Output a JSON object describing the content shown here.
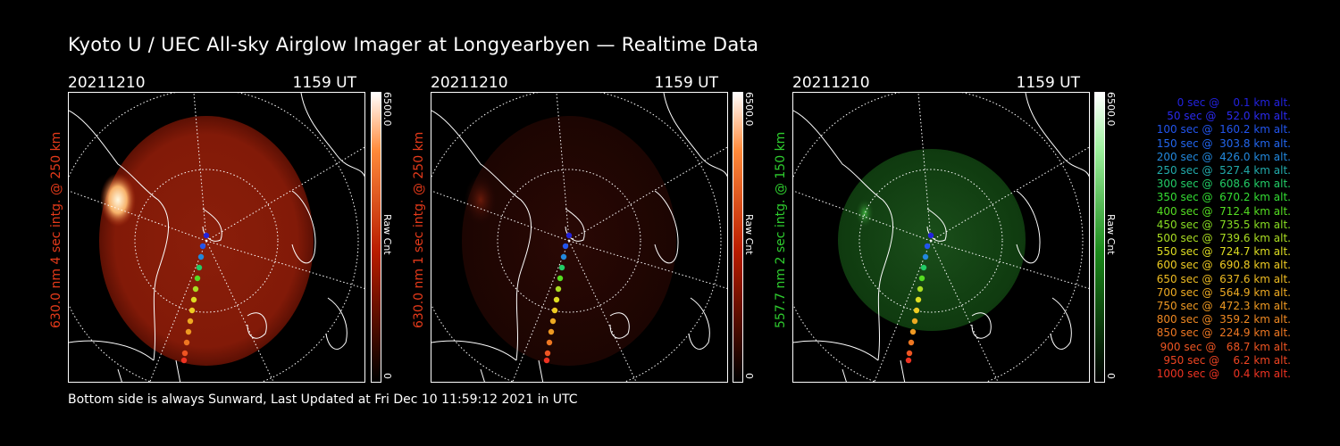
{
  "title": "Kyoto U / UEC All-sky Airglow Imager at Longyearbyen — Realtime Data",
  "footer": "Bottom side is always Sunward, Last Updated at Fri Dec 10 11:59:12 2021 in UTC",
  "panels": [
    {
      "date": "20211210",
      "time": "1159 UT",
      "ylabel": "630.0 nm  4 sec intg. @ 250 km",
      "label_color": "#e53a1a",
      "cbar_max": "6500.0",
      "cbar_min": "0",
      "cbar_unit": "Raw Cnt",
      "cbar_color": "#cc2200"
    },
    {
      "date": "20211210",
      "time": "1159 UT",
      "ylabel": "630.0 nm  1 sec intg. @ 250 km",
      "label_color": "#e53a1a",
      "cbar_max": "6500.0",
      "cbar_min": "0",
      "cbar_unit": "Raw Cnt",
      "cbar_color": "#cc2200"
    },
    {
      "date": "20211210",
      "time": "1159 UT",
      "ylabel": "557.7 nm  2 sec intg. @ 150 km",
      "label_color": "#2ecc2e",
      "cbar_max": "6500.0",
      "cbar_min": "0",
      "cbar_unit": "Raw Cnt",
      "cbar_color": "#1aa31a"
    }
  ],
  "legend": [
    {
      "text": "   0 sec @    0.1 km alt.",
      "color": "#2222dd"
    },
    {
      "text": "  50 sec @   52.0 km alt.",
      "color": "#2a2aee"
    },
    {
      "text": " 100 sec @  160.2 km alt.",
      "color": "#2255ee"
    },
    {
      "text": " 150 sec @  303.8 km alt.",
      "color": "#2266ee"
    },
    {
      "text": " 200 sec @  426.0 km alt.",
      "color": "#2288dd"
    },
    {
      "text": " 250 sec @  527.4 km alt.",
      "color": "#22aaaa"
    },
    {
      "text": " 300 sec @  608.6 km alt.",
      "color": "#22cc66"
    },
    {
      "text": " 350 sec @  670.2 km alt.",
      "color": "#33dd33"
    },
    {
      "text": " 400 sec @  712.4 km alt.",
      "color": "#55dd22"
    },
    {
      "text": " 450 sec @  735.5 km alt.",
      "color": "#88dd22"
    },
    {
      "text": " 500 sec @  739.6 km alt.",
      "color": "#aadd22"
    },
    {
      "text": " 550 sec @  724.7 km alt.",
      "color": "#dddd22"
    },
    {
      "text": " 600 sec @  690.8 km alt.",
      "color": "#eecc22"
    },
    {
      "text": " 650 sec @  637.6 km alt.",
      "color": "#eebb22"
    },
    {
      "text": " 700 sec @  564.9 km alt.",
      "color": "#eeaa22"
    },
    {
      "text": " 750 sec @  472.3 km alt.",
      "color": "#ee9922"
    },
    {
      "text": " 800 sec @  359.2 km alt.",
      "color": "#ee8822"
    },
    {
      "text": " 850 sec @  224.9 km alt.",
      "color": "#ee7722"
    },
    {
      "text": " 900 sec @   68.7 km alt.",
      "color": "#ee5522"
    },
    {
      "text": " 950 sec @    6.2 km alt.",
      "color": "#ee4422"
    },
    {
      "text": "1000 sec @    0.4 km alt.",
      "color": "#ee3322"
    }
  ]
}
